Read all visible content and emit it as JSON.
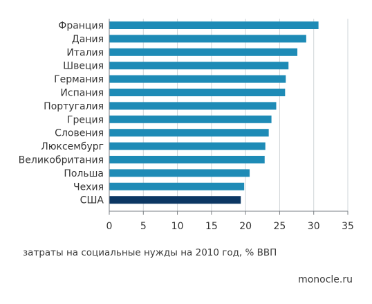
{
  "chart_data": {
    "type": "bar",
    "orientation": "horizontal",
    "categories": [
      "Франция",
      "Дания",
      "Италия",
      "Швеция",
      "Германия",
      "Испания",
      "Португалия",
      "Греция",
      "Словения",
      "Люксембург",
      "Великобритания",
      "Польша",
      "Чехия",
      "США"
    ],
    "values": [
      30.7,
      28.9,
      27.6,
      26.3,
      25.9,
      25.8,
      24.5,
      23.8,
      23.4,
      22.9,
      22.8,
      20.6,
      19.8,
      19.3
    ],
    "xlim": [
      0,
      35
    ],
    "xticks": [
      "0",
      "5",
      "10",
      "15",
      "20",
      "25",
      "30",
      "35"
    ],
    "xlabel": "затраты на социальные нужды на 2010 год, % ВВП",
    "grid": "vertical",
    "colors": {
      "bar": "#1e8bb6",
      "highlight": "#0c3763",
      "grid": "#cfd4d8",
      "axis": "#7a7f84"
    },
    "highlight_category": "США"
  },
  "source": "monocle.ru"
}
